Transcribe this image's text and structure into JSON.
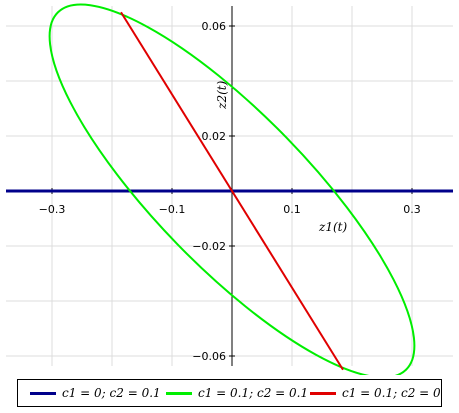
{
  "chart_data": {
    "type": "line",
    "title": "",
    "xlabel": "z1(t)",
    "ylabel": "z2(t)",
    "xlim": [
      -0.37,
      0.37
    ],
    "ylim": [
      -0.067,
      0.067
    ],
    "xticks": [
      -0.3,
      -0.1,
      0.1,
      0.3
    ],
    "xtick_labels": [
      "−0.3",
      "−0.1",
      "0.1",
      "0.3"
    ],
    "yticks": [
      -0.06,
      -0.02,
      0.02,
      0.06
    ],
    "ytick_labels": [
      "−0.06",
      "−0.02",
      "0.02",
      "0.06"
    ],
    "grid": true,
    "legend_position": "bottom",
    "series": [
      {
        "name": "c1 = 0; c2 = 0.1",
        "color": "#00008b",
        "shape": "line",
        "points": [
          [
            -0.37,
            0
          ],
          [
            0.37,
            0
          ]
        ]
      },
      {
        "name": "c1 = 0.1; c2 = 0.1",
        "color": "#00ee00",
        "shape": "ellipse",
        "vertices": [
          [
            -0.29,
            0.065
          ],
          [
            0.29,
            -0.065
          ]
        ],
        "crossings_x": [
          -0.17,
          0.17
        ],
        "crossings_y": [
          0.065,
          -0.065
        ]
      },
      {
        "name": "c1 = 0.1; c2 = 0",
        "color": "#e00000",
        "shape": "line",
        "points": [
          [
            -0.185,
            0.065
          ],
          [
            0.185,
            -0.065
          ]
        ]
      }
    ]
  },
  "legend": [
    {
      "label": "c1 = 0; c2 = 0.1",
      "color": "#00008b"
    },
    {
      "label": "c1 = 0.1; c2 = 0.1",
      "color": "#00ee00"
    },
    {
      "label": "c1 = 0.1; c2 = 0",
      "color": "#e00000"
    }
  ]
}
